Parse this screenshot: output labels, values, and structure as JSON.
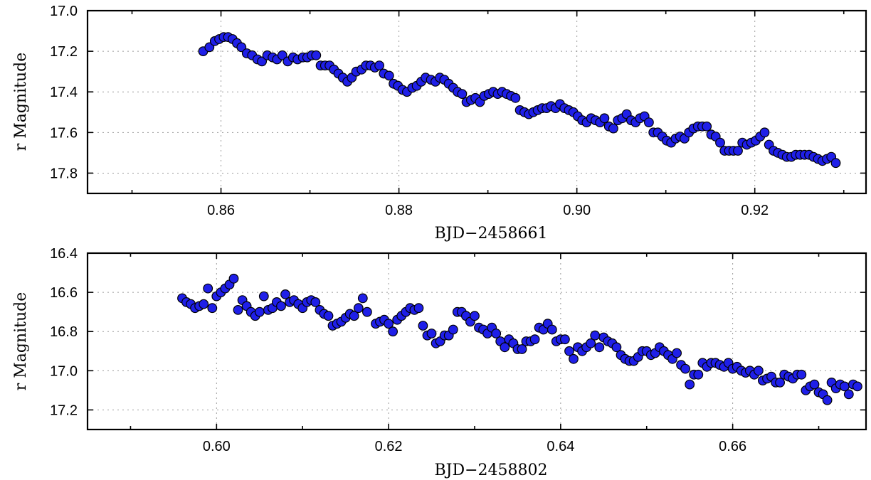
{
  "colors": {
    "marker_fill": "#1f1fe8",
    "marker_edge": "#000000",
    "grid": "#9a9a9a"
  },
  "chart_data": [
    {
      "type": "scatter",
      "xlabel": "BJD−2458661",
      "ylabel": "r Magnitude",
      "xlim": [
        0.845,
        0.9325
      ],
      "ylim": [
        17.9,
        17.0
      ],
      "y_inverted": true,
      "grid": true,
      "xticks": [
        0.86,
        0.88,
        0.9,
        0.92
      ],
      "xtick_labels": [
        "0.86",
        "0.88",
        "0.90",
        "0.92"
      ],
      "yticks": [
        17.0,
        17.2,
        17.4,
        17.6,
        17.8
      ],
      "ytick_labels": [
        "17.0",
        "17.2",
        "17.4",
        "17.6",
        "17.8"
      ],
      "points": [
        [
          0.858,
          17.2
        ],
        [
          0.8587,
          17.18
        ],
        [
          0.8593,
          17.15
        ],
        [
          0.8598,
          17.14
        ],
        [
          0.8603,
          17.13
        ],
        [
          0.8608,
          17.13
        ],
        [
          0.8613,
          17.14
        ],
        [
          0.8618,
          17.16
        ],
        [
          0.8623,
          17.18
        ],
        [
          0.8629,
          17.21
        ],
        [
          0.8635,
          17.22
        ],
        [
          0.8641,
          17.24
        ],
        [
          0.8646,
          17.25
        ],
        [
          0.8652,
          17.22
        ],
        [
          0.8658,
          17.23
        ],
        [
          0.8663,
          17.24
        ],
        [
          0.8669,
          17.22
        ],
        [
          0.8675,
          17.25
        ],
        [
          0.8681,
          17.23
        ],
        [
          0.8686,
          17.24
        ],
        [
          0.8692,
          17.23
        ],
        [
          0.8697,
          17.23
        ],
        [
          0.8702,
          17.22
        ],
        [
          0.8707,
          17.22
        ],
        [
          0.8712,
          17.27
        ],
        [
          0.8717,
          17.27
        ],
        [
          0.8722,
          17.27
        ],
        [
          0.8727,
          17.29
        ],
        [
          0.8732,
          17.31
        ],
        [
          0.8737,
          17.33
        ],
        [
          0.8742,
          17.35
        ],
        [
          0.8747,
          17.33
        ],
        [
          0.8752,
          17.3
        ],
        [
          0.8758,
          17.29
        ],
        [
          0.8763,
          17.27
        ],
        [
          0.8768,
          17.27
        ],
        [
          0.8773,
          17.28
        ],
        [
          0.8778,
          17.27
        ],
        [
          0.8783,
          17.31
        ],
        [
          0.8789,
          17.32
        ],
        [
          0.8794,
          17.36
        ],
        [
          0.8799,
          17.37
        ],
        [
          0.8804,
          17.39
        ],
        [
          0.8809,
          17.4
        ],
        [
          0.8815,
          17.38
        ],
        [
          0.882,
          17.37
        ],
        [
          0.8825,
          17.35
        ],
        [
          0.883,
          17.33
        ],
        [
          0.8836,
          17.34
        ],
        [
          0.8841,
          17.35
        ],
        [
          0.8846,
          17.33
        ],
        [
          0.8851,
          17.34
        ],
        [
          0.8856,
          17.36
        ],
        [
          0.8861,
          17.38
        ],
        [
          0.8866,
          17.4
        ],
        [
          0.8871,
          17.41
        ],
        [
          0.8876,
          17.45
        ],
        [
          0.8881,
          17.44
        ],
        [
          0.8886,
          17.43
        ],
        [
          0.8891,
          17.45
        ],
        [
          0.8896,
          17.42
        ],
        [
          0.8901,
          17.41
        ],
        [
          0.8906,
          17.4
        ],
        [
          0.8911,
          17.41
        ],
        [
          0.8916,
          17.4
        ],
        [
          0.8921,
          17.41
        ],
        [
          0.8926,
          17.42
        ],
        [
          0.8931,
          17.43
        ],
        [
          0.8936,
          17.49
        ],
        [
          0.8941,
          17.5
        ],
        [
          0.8946,
          17.51
        ],
        [
          0.8951,
          17.5
        ],
        [
          0.8956,
          17.49
        ],
        [
          0.8961,
          17.48
        ],
        [
          0.8966,
          17.48
        ],
        [
          0.8971,
          17.47
        ],
        [
          0.8976,
          17.48
        ],
        [
          0.8981,
          17.46
        ],
        [
          0.8986,
          17.48
        ],
        [
          0.8991,
          17.49
        ],
        [
          0.8996,
          17.5
        ],
        [
          0.9001,
          17.52
        ],
        [
          0.9006,
          17.54
        ],
        [
          0.9011,
          17.55
        ],
        [
          0.9016,
          17.53
        ],
        [
          0.9021,
          17.54
        ],
        [
          0.9026,
          17.55
        ],
        [
          0.9031,
          17.53
        ],
        [
          0.9036,
          17.57
        ],
        [
          0.9041,
          17.58
        ],
        [
          0.9046,
          17.54
        ],
        [
          0.9051,
          17.53
        ],
        [
          0.9056,
          17.51
        ],
        [
          0.9061,
          17.54
        ],
        [
          0.9066,
          17.55
        ],
        [
          0.9071,
          17.53
        ],
        [
          0.9076,
          17.52
        ],
        [
          0.9081,
          17.55
        ],
        [
          0.9086,
          17.6
        ],
        [
          0.9091,
          17.6
        ],
        [
          0.9096,
          17.62
        ],
        [
          0.9101,
          17.64
        ],
        [
          0.9106,
          17.65
        ],
        [
          0.9111,
          17.63
        ],
        [
          0.9116,
          17.62
        ],
        [
          0.9121,
          17.63
        ],
        [
          0.9126,
          17.6
        ],
        [
          0.9131,
          17.58
        ],
        [
          0.9136,
          17.57
        ],
        [
          0.9141,
          17.57
        ],
        [
          0.9146,
          17.57
        ],
        [
          0.9151,
          17.61
        ],
        [
          0.9156,
          17.62
        ],
        [
          0.9161,
          17.65
        ],
        [
          0.9166,
          17.69
        ],
        [
          0.9171,
          17.69
        ],
        [
          0.9176,
          17.69
        ],
        [
          0.9181,
          17.69
        ],
        [
          0.9186,
          17.65
        ],
        [
          0.9191,
          17.66
        ],
        [
          0.9196,
          17.65
        ],
        [
          0.9201,
          17.64
        ],
        [
          0.9206,
          17.62
        ],
        [
          0.9211,
          17.6
        ],
        [
          0.9216,
          17.66
        ],
        [
          0.9221,
          17.69
        ],
        [
          0.9226,
          17.7
        ],
        [
          0.9231,
          17.71
        ],
        [
          0.9236,
          17.72
        ],
        [
          0.9241,
          17.72
        ],
        [
          0.9246,
          17.71
        ],
        [
          0.9251,
          17.71
        ],
        [
          0.9256,
          17.71
        ],
        [
          0.9261,
          17.71
        ],
        [
          0.9266,
          17.72
        ],
        [
          0.9271,
          17.73
        ],
        [
          0.9276,
          17.74
        ],
        [
          0.9281,
          17.73
        ],
        [
          0.9286,
          17.72
        ],
        [
          0.9291,
          17.75
        ]
      ]
    },
    {
      "type": "scatter",
      "xlabel": "BJD−2458802",
      "ylabel": "r Magnitude",
      "xlim": [
        0.585,
        0.6755
      ],
      "ylim": [
        17.3,
        16.4
      ],
      "y_inverted": true,
      "grid": true,
      "xticks": [
        0.6,
        0.62,
        0.64,
        0.66
      ],
      "xtick_labels": [
        "0.60",
        "0.62",
        "0.64",
        "0.66"
      ],
      "yticks": [
        16.4,
        16.6,
        16.8,
        17.0,
        17.2
      ],
      "ytick_labels": [
        "16.4",
        "16.6",
        "16.8",
        "17.0",
        "17.2"
      ],
      "points": [
        [
          0.596,
          16.63
        ],
        [
          0.5965,
          16.65
        ],
        [
          0.597,
          16.66
        ],
        [
          0.5975,
          16.68
        ],
        [
          0.598,
          16.67
        ],
        [
          0.5985,
          16.66
        ],
        [
          0.599,
          16.58
        ],
        [
          0.5995,
          16.68
        ],
        [
          0.6,
          16.62
        ],
        [
          0.6005,
          16.6
        ],
        [
          0.601,
          16.58
        ],
        [
          0.6015,
          16.56
        ],
        [
          0.602,
          16.53
        ],
        [
          0.6025,
          16.69
        ],
        [
          0.603,
          16.64
        ],
        [
          0.6035,
          16.67
        ],
        [
          0.604,
          16.7
        ],
        [
          0.6045,
          16.72
        ],
        [
          0.605,
          16.7
        ],
        [
          0.6055,
          16.62
        ],
        [
          0.606,
          16.69
        ],
        [
          0.6065,
          16.68
        ],
        [
          0.607,
          16.65
        ],
        [
          0.6075,
          16.67
        ],
        [
          0.608,
          16.61
        ],
        [
          0.6085,
          16.65
        ],
        [
          0.609,
          16.64
        ],
        [
          0.6095,
          16.66
        ],
        [
          0.61,
          16.68
        ],
        [
          0.6105,
          16.65
        ],
        [
          0.611,
          16.64
        ],
        [
          0.6115,
          16.65
        ],
        [
          0.612,
          16.69
        ],
        [
          0.6125,
          16.71
        ],
        [
          0.613,
          16.72
        ],
        [
          0.6135,
          16.77
        ],
        [
          0.614,
          16.76
        ],
        [
          0.6145,
          16.75
        ],
        [
          0.615,
          16.73
        ],
        [
          0.6155,
          16.71
        ],
        [
          0.616,
          16.72
        ],
        [
          0.6165,
          16.68
        ],
        [
          0.617,
          16.63
        ],
        [
          0.6175,
          16.7
        ],
        [
          0.6185,
          16.76
        ],
        [
          0.619,
          16.75
        ],
        [
          0.6195,
          16.74
        ],
        [
          0.62,
          16.76
        ],
        [
          0.6205,
          16.8
        ],
        [
          0.621,
          16.74
        ],
        [
          0.6215,
          16.72
        ],
        [
          0.622,
          16.7
        ],
        [
          0.6225,
          16.68
        ],
        [
          0.623,
          16.69
        ],
        [
          0.6235,
          16.68
        ],
        [
          0.624,
          16.77
        ],
        [
          0.6245,
          16.82
        ],
        [
          0.625,
          16.81
        ],
        [
          0.6255,
          16.86
        ],
        [
          0.626,
          16.85
        ],
        [
          0.6265,
          16.82
        ],
        [
          0.627,
          16.82
        ],
        [
          0.6275,
          16.79
        ],
        [
          0.628,
          16.7
        ],
        [
          0.6285,
          16.7
        ],
        [
          0.629,
          16.72
        ],
        [
          0.6295,
          16.75
        ],
        [
          0.63,
          16.72
        ],
        [
          0.6305,
          16.78
        ],
        [
          0.631,
          16.79
        ],
        [
          0.6315,
          16.81
        ],
        [
          0.632,
          16.78
        ],
        [
          0.6325,
          16.81
        ],
        [
          0.633,
          16.85
        ],
        [
          0.6335,
          16.88
        ],
        [
          0.634,
          16.84
        ],
        [
          0.6345,
          16.86
        ],
        [
          0.635,
          16.89
        ],
        [
          0.6355,
          16.89
        ],
        [
          0.636,
          16.85
        ],
        [
          0.6365,
          16.85
        ],
        [
          0.637,
          16.84
        ],
        [
          0.6375,
          16.78
        ],
        [
          0.638,
          16.79
        ],
        [
          0.6385,
          16.76
        ],
        [
          0.639,
          16.79
        ],
        [
          0.6395,
          16.85
        ],
        [
          0.64,
          16.84
        ],
        [
          0.6405,
          16.84
        ],
        [
          0.641,
          16.9
        ],
        [
          0.6415,
          16.94
        ],
        [
          0.642,
          16.88
        ],
        [
          0.6425,
          16.9
        ],
        [
          0.643,
          16.88
        ],
        [
          0.6435,
          16.86
        ],
        [
          0.644,
          16.82
        ],
        [
          0.6445,
          16.88
        ],
        [
          0.645,
          16.83
        ],
        [
          0.6455,
          16.85
        ],
        [
          0.646,
          16.86
        ],
        [
          0.6465,
          16.88
        ],
        [
          0.647,
          16.92
        ],
        [
          0.6475,
          16.94
        ],
        [
          0.648,
          16.95
        ],
        [
          0.6485,
          16.95
        ],
        [
          0.649,
          16.93
        ],
        [
          0.6495,
          16.9
        ],
        [
          0.65,
          16.9
        ],
        [
          0.6505,
          16.92
        ],
        [
          0.651,
          16.91
        ],
        [
          0.6515,
          16.88
        ],
        [
          0.652,
          16.9
        ],
        [
          0.6525,
          16.92
        ],
        [
          0.653,
          16.94
        ],
        [
          0.6535,
          16.91
        ],
        [
          0.654,
          16.97
        ],
        [
          0.6545,
          16.99
        ],
        [
          0.655,
          17.07
        ],
        [
          0.6555,
          17.02
        ],
        [
          0.656,
          17.02
        ],
        [
          0.6565,
          16.96
        ],
        [
          0.657,
          16.98
        ],
        [
          0.6575,
          16.96
        ],
        [
          0.658,
          16.96
        ],
        [
          0.6585,
          16.97
        ],
        [
          0.659,
          16.98
        ],
        [
          0.6595,
          16.96
        ],
        [
          0.66,
          16.99
        ],
        [
          0.6605,
          16.98
        ],
        [
          0.661,
          17.0
        ],
        [
          0.6615,
          17.01
        ],
        [
          0.662,
          17.0
        ],
        [
          0.6625,
          17.02
        ],
        [
          0.663,
          17.0
        ],
        [
          0.6635,
          17.05
        ],
        [
          0.664,
          17.04
        ],
        [
          0.6645,
          17.03
        ],
        [
          0.665,
          17.06
        ],
        [
          0.6655,
          17.06
        ],
        [
          0.666,
          17.02
        ],
        [
          0.6665,
          17.03
        ],
        [
          0.667,
          17.04
        ],
        [
          0.6675,
          17.02
        ],
        [
          0.668,
          17.02
        ],
        [
          0.6685,
          17.1
        ],
        [
          0.669,
          17.08
        ],
        [
          0.6695,
          17.07
        ],
        [
          0.67,
          17.11
        ],
        [
          0.6705,
          17.12
        ],
        [
          0.671,
          17.15
        ],
        [
          0.6715,
          17.06
        ],
        [
          0.672,
          17.09
        ],
        [
          0.6725,
          17.07
        ],
        [
          0.673,
          17.08
        ],
        [
          0.6735,
          17.12
        ],
        [
          0.674,
          17.07
        ],
        [
          0.6745,
          17.08
        ]
      ]
    }
  ]
}
